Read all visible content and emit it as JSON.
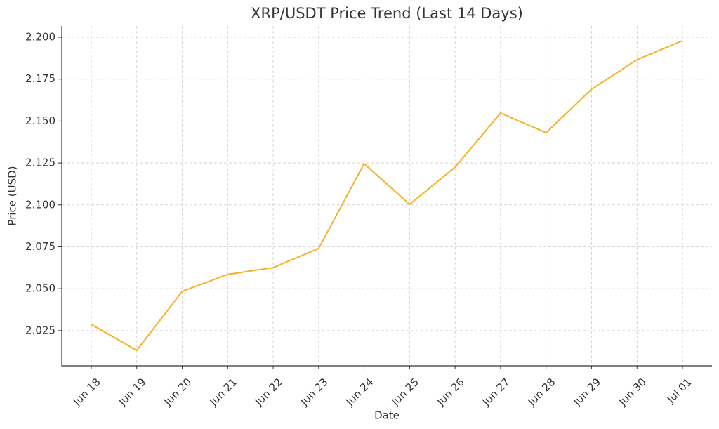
{
  "chart_data": {
    "type": "line",
    "title": "XRP/USDT Price Trend (Last 14 Days)",
    "x_label": "Date",
    "y_label": "Price (USD)",
    "categories": [
      "Jun 18",
      "Jun 19",
      "Jun 20",
      "Jun 21",
      "Jun 22",
      "Jun 23",
      "Jun 24",
      "Jun 25",
      "Jun 26",
      "Jun 27",
      "Jun 28",
      "Jun 29",
      "Jun 30",
      "Jul 01"
    ],
    "series": [
      {
        "name": "XRP/USDT",
        "color": "#f8b124",
        "values": [
          2.0287,
          2.0132,
          2.0484,
          2.0585,
          2.0626,
          2.074,
          2.1246,
          2.1003,
          2.1225,
          2.1548,
          2.143,
          2.169,
          2.1866,
          2.1979
        ]
      }
    ],
    "ylim": [
      2.004,
      2.2067
    ],
    "yticks": [
      {
        "value": 2.025,
        "label": "2.025"
      },
      {
        "value": 2.05,
        "label": "2.050"
      },
      {
        "value": 2.075,
        "label": "2.075"
      },
      {
        "value": 2.1,
        "label": "2.100"
      },
      {
        "value": 2.125,
        "label": "2.125"
      },
      {
        "value": 2.15,
        "label": "2.150"
      },
      {
        "value": 2.175,
        "label": "2.175"
      },
      {
        "value": 2.2,
        "label": "2.200"
      }
    ],
    "grid": true
  }
}
